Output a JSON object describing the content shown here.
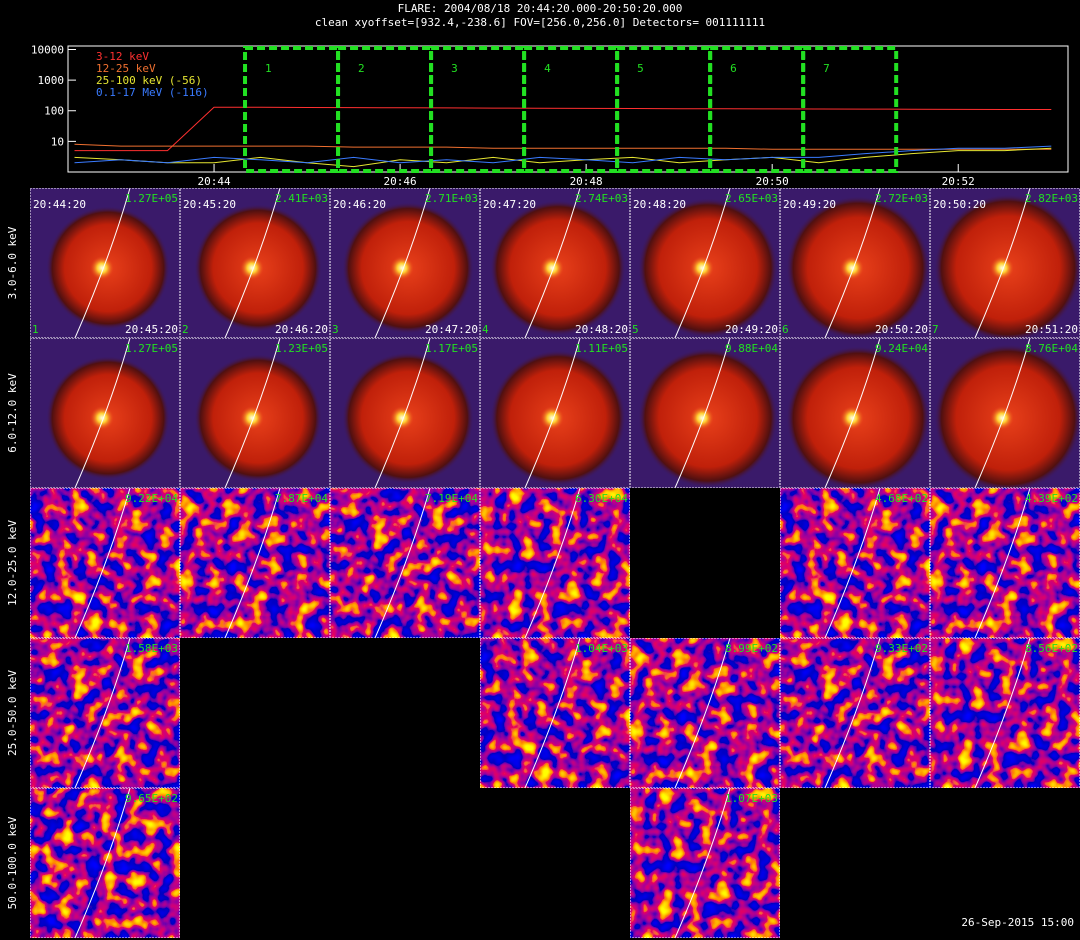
{
  "title": "FLARE: 2004/08/18 20:44:20.000-20:50:20.000",
  "subtitle": "clean    xyoffset=[932.4,-238.6]    FOV=[256.0,256.0]    Detectors= 001111111",
  "chart_data": {
    "type": "line",
    "log_scale": true,
    "x": [
      42.5,
      43,
      43.5,
      44,
      44.5,
      45,
      45.5,
      46,
      46.5,
      47,
      47.5,
      48,
      48.5,
      49,
      49.5,
      50,
      50.5,
      51,
      51.5,
      52,
      52.5,
      53
    ],
    "xlim": [
      42.43,
      53.18
    ],
    "xticks": [
      {
        "value": 44,
        "label": "20:44"
      },
      {
        "value": 46,
        "label": "20:46"
      },
      {
        "value": 48,
        "label": "20:48"
      },
      {
        "value": 50,
        "label": "20:50"
      },
      {
        "value": 52,
        "label": "20:52"
      }
    ],
    "ylim": [
      1,
      13000
    ],
    "yticks": [
      10,
      100,
      1000,
      10000
    ],
    "series": [
      {
        "name": "3-12 keV",
        "color": "#ff3030",
        "values": [
          5,
          5,
          5,
          130,
          130,
          128,
          127,
          125,
          124,
          122,
          120,
          119,
          118,
          117,
          116,
          115,
          114,
          113,
          112,
          111,
          110,
          110
        ]
      },
      {
        "name": "12-25 keV",
        "color": "#f07030",
        "values": [
          8,
          7,
          7,
          7,
          7,
          7,
          6.5,
          6.5,
          6.5,
          6,
          6,
          6,
          6,
          6,
          6,
          5.5,
          5.5,
          5.5,
          5.5,
          5.5,
          5.5,
          5.5
        ]
      },
      {
        "name": "25-100 keV (-56)",
        "color": "#e6e632",
        "values": [
          3,
          2.5,
          2,
          2,
          3,
          2,
          1.5,
          2.5,
          2,
          3,
          2,
          2.5,
          3,
          2,
          2.5,
          3,
          2,
          3,
          4,
          5,
          5,
          6
        ]
      },
      {
        "name": "0.1-17 MeV (-116)",
        "color": "#3a7bff",
        "values": [
          2,
          2.5,
          2,
          3,
          2.5,
          2,
          3,
          2,
          2.5,
          2,
          3,
          2.5,
          2,
          3,
          2.5,
          3,
          3,
          4,
          5,
          6,
          6,
          7
        ]
      }
    ],
    "intervals": [
      {
        "label": "1",
        "start": 44.333,
        "end": 45.333
      },
      {
        "label": "2",
        "start": 45.333,
        "end": 46.333
      },
      {
        "label": "3",
        "start": 46.333,
        "end": 47.333
      },
      {
        "label": "4",
        "start": 47.333,
        "end": 48.333
      },
      {
        "label": "5",
        "start": 48.333,
        "end": 49.333
      },
      {
        "label": "6",
        "start": 49.333,
        "end": 50.333
      },
      {
        "label": "7",
        "start": 50.333,
        "end": 51.333
      }
    ]
  },
  "image_grid": {
    "rows": [
      {
        "label": "3.0-6.0 keV",
        "cells": [
          {
            "max": "1.27E+05",
            "start": "20:44:20",
            "end": "20:45:20",
            "number": "1"
          },
          {
            "max": "2.41E+03",
            "start": "20:45:20",
            "end": "20:46:20",
            "number": "2"
          },
          {
            "max": "2.71E+03",
            "start": "20:46:20",
            "end": "20:47:20",
            "number": "3"
          },
          {
            "max": "2.74E+03",
            "start": "20:47:20",
            "end": "20:48:20",
            "number": "4"
          },
          {
            "max": "2.65E+03",
            "start": "20:48:20",
            "end": "20:49:20",
            "number": "5"
          },
          {
            "max": "2.72E+03",
            "start": "20:49:20",
            "end": "20:50:20",
            "number": "6"
          },
          {
            "max": "2.82E+03",
            "start": "20:50:20",
            "end": "20:51:20",
            "number": "7"
          }
        ]
      },
      {
        "label": "6.0-12.0 keV",
        "cells": [
          {
            "max": "1.27E+05"
          },
          {
            "max": "1.23E+05"
          },
          {
            "max": "1.17E+05"
          },
          {
            "max": "1.11E+05"
          },
          {
            "max": "9.88E+04"
          },
          {
            "max": "9.24E+04"
          },
          {
            "max": "8.76E+04"
          }
        ]
      },
      {
        "label": "12.0-25.0 keV",
        "cells": [
          {
            "max": "9.22E+04"
          },
          {
            "max": "7.87E+04"
          },
          {
            "max": "7.19E+04"
          },
          {
            "max": "6.30E+04"
          },
          null,
          {
            "max": "4.68E+02"
          },
          {
            "max": "4.39E+02"
          }
        ]
      },
      {
        "label": "25.0-50.0 keV",
        "cells": [
          {
            "max": "1.58E+03"
          },
          null,
          null,
          {
            "max": "1.04E+03"
          },
          {
            "max": "8.99E+02"
          },
          {
            "max": "9.33E+02"
          },
          {
            "max": "8.56E+02"
          }
        ]
      },
      {
        "label": "50.0-100.0 keV",
        "cells": [
          {
            "max": "9.65E+02"
          },
          null,
          null,
          null,
          {
            "max": "1.07E+03"
          },
          null,
          null
        ]
      }
    ]
  },
  "footer": "26-Sep-2015 15:00"
}
